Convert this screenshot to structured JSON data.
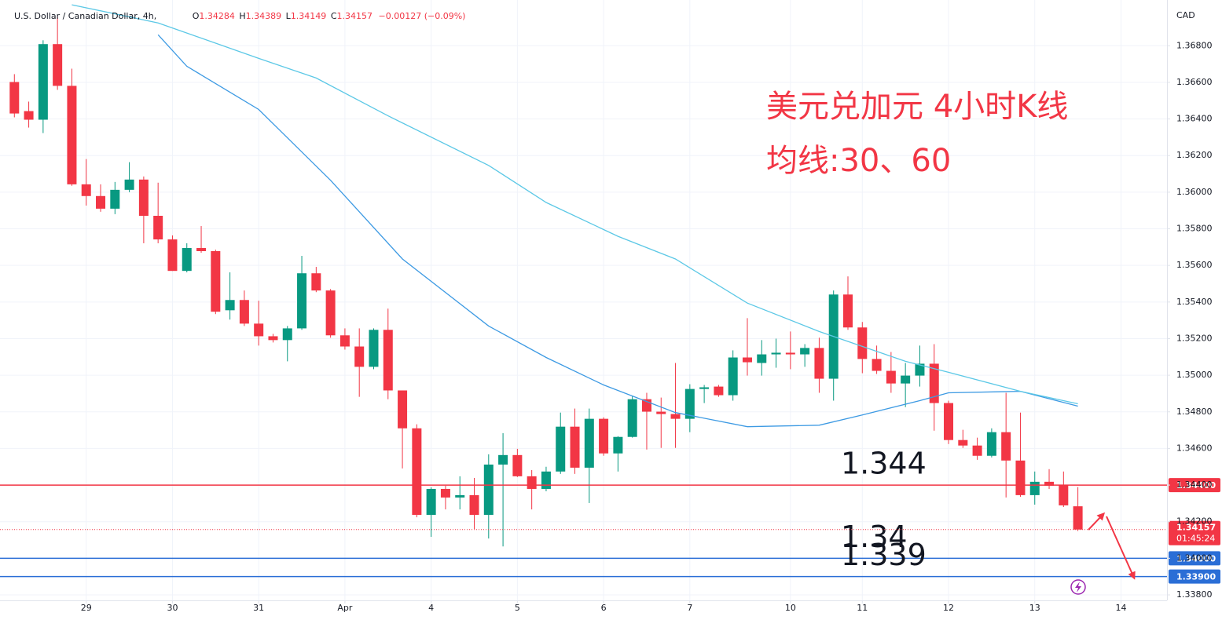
{
  "chart_data": {
    "type": "candlestick",
    "header": {
      "symbol": "U.S. Dollar / Canadian Dollar, 4h,",
      "ohlc": [
        {
          "label": "O",
          "value": "1.34284"
        },
        {
          "label": "H",
          "value": "1.34389"
        },
        {
          "label": "L",
          "value": "1.34149"
        },
        {
          "label": "C",
          "value": "1.34157"
        }
      ],
      "change": "−0.00127 (−0.09%)"
    },
    "currency": "CAD",
    "annotations": [
      "美元兑加元 4小时K线",
      "均线:30、60"
    ],
    "up_color": "#089981",
    "down_color": "#f23645",
    "x": [
      0,
      1,
      2,
      3,
      4,
      5,
      6,
      7,
      8,
      9,
      10,
      11,
      12,
      13,
      14,
      15,
      16,
      17,
      18,
      19,
      20,
      21,
      22,
      23,
      24,
      25,
      26,
      27,
      28,
      29,
      30,
      31,
      32,
      33,
      34,
      35,
      36,
      37,
      38,
      39,
      40,
      41,
      42,
      43,
      44,
      45,
      46,
      47,
      48,
      49,
      50,
      51,
      52,
      53,
      54,
      55,
      56,
      57,
      58,
      59,
      60,
      61,
      62,
      63,
      64,
      65,
      66,
      67,
      68,
      69,
      70,
      71,
      72,
      73,
      74
    ],
    "open": [
      1.36602,
      1.36443,
      1.36396,
      1.36809,
      1.36581,
      1.36043,
      1.35979,
      1.3591,
      1.36013,
      1.36069,
      1.35871,
      1.35742,
      1.3557,
      1.35695,
      1.35678,
      1.35355,
      1.35411,
      1.35282,
      1.35213,
      1.35192,
      1.35256,
      1.35557,
      1.35463,
      1.35218,
      1.35157,
      1.35046,
      1.35248,
      1.34917,
      1.3471,
      1.34237,
      1.34379,
      1.34332,
      1.34345,
      1.34237,
      1.34512,
      1.34564,
      1.34448,
      1.34379,
      1.34474,
      1.34719,
      1.34495,
      1.34762,
      1.34573,
      1.34663,
      1.34869,
      1.34801,
      1.34788,
      1.34762,
      1.34925,
      1.34938,
      1.34891,
      1.35097,
      1.35067,
      1.35114,
      1.35123,
      1.35114,
      1.35149,
      1.34981,
      1.35441,
      1.35261,
      1.35089,
      1.35024,
      1.34955,
      1.34998,
      1.35063,
      1.34848,
      1.34646,
      1.34616,
      1.3456,
      1.34689,
      1.34534,
      1.34345,
      1.34418,
      1.34401,
      1.34284
    ],
    "high": [
      1.36645,
      1.36495,
      1.3683,
      1.36959,
      1.36675,
      1.36181,
      1.36043,
      1.36056,
      1.36164,
      1.36086,
      1.36052,
      1.35764,
      1.35721,
      1.35815,
      1.35686,
      1.35562,
      1.35463,
      1.35407,
      1.35226,
      1.35269,
      1.35652,
      1.35592,
      1.35471,
      1.35256,
      1.35256,
      1.35256,
      1.35364,
      1.34917,
      1.34732,
      1.34388,
      1.34396,
      1.34448,
      1.34439,
      1.34568,
      1.34684,
      1.34598,
      1.34482,
      1.345,
      1.34796,
      1.34818,
      1.34818,
      1.3477,
      1.34667,
      1.34887,
      1.34904,
      1.34878,
      1.35067,
      1.34951,
      1.34947,
      1.34947,
      1.35136,
      1.35312,
      1.35192,
      1.352,
      1.35239,
      1.3517,
      1.35205,
      1.35463,
      1.3554,
      1.35291,
      1.35162,
      1.35127,
      1.35067,
      1.35162,
      1.3517,
      1.34861,
      1.34702,
      1.34659,
      1.3471,
      1.34904,
      1.34796,
      1.34474,
      1.34487,
      1.34474,
      1.34389
    ],
    "low": [
      1.36409,
      1.36353,
      1.36323,
      1.36559,
      1.36035,
      1.35927,
      1.35893,
      1.3588,
      1.36,
      1.35721,
      1.35721,
      1.3557,
      1.35562,
      1.35669,
      1.35334,
      1.35304,
      1.35269,
      1.35162,
      1.35179,
      1.35076,
      1.35248,
      1.35454,
      1.35205,
      1.3514,
      1.34882,
      1.35033,
      1.34869,
      1.34491,
      1.34224,
      1.34117,
      1.34267,
      1.34267,
      1.3416,
      1.34108,
      1.34065,
      1.34444,
      1.34267,
      1.34366,
      1.34461,
      1.34461,
      1.34302,
      1.3456,
      1.34474,
      1.34659,
      1.34594,
      1.34603,
      1.34603,
      1.34689,
      1.34848,
      1.34882,
      1.34861,
      1.34998,
      1.34998,
      1.35041,
      1.35033,
      1.35046,
      1.34904,
      1.34861,
      1.35248,
      1.35011,
      1.35007,
      1.34904,
      1.34826,
      1.34938,
      1.34697,
      1.34624,
      1.34603,
      1.34538,
      1.34551,
      1.34332,
      1.34336,
      1.34293,
      1.34379,
      1.3428,
      1.34149
    ],
    "close": [
      1.3643,
      1.36396,
      1.36809,
      1.36581,
      1.36043,
      1.35979,
      1.3591,
      1.36013,
      1.36069,
      1.35871,
      1.35742,
      1.3557,
      1.35695,
      1.35678,
      1.35347,
      1.35411,
      1.35282,
      1.35213,
      1.35192,
      1.35256,
      1.35557,
      1.35463,
      1.35218,
      1.35157,
      1.35046,
      1.35248,
      1.34917,
      1.3471,
      1.34237,
      1.34379,
      1.34332,
      1.34345,
      1.34237,
      1.34512,
      1.34564,
      1.34448,
      1.34379,
      1.34474,
      1.34719,
      1.34495,
      1.34762,
      1.34573,
      1.34663,
      1.34869,
      1.34801,
      1.34788,
      1.34762,
      1.34925,
      1.34934,
      1.34891,
      1.35097,
      1.35071,
      1.35114,
      1.35123,
      1.35114,
      1.35149,
      1.34981,
      1.35441,
      1.35261,
      1.35089,
      1.35024,
      1.34955,
      1.34998,
      1.35063,
      1.34848,
      1.34646,
      1.34616,
      1.3456,
      1.34689,
      1.34534,
      1.34345,
      1.34418,
      1.34396,
      1.34289,
      1.34157
    ],
    "lines": [
      {
        "color": "#3d9ae3",
        "x": [
          10,
          12,
          17,
          22,
          27,
          33,
          37,
          41,
          46,
          51,
          56,
          59,
          63,
          65,
          70,
          74
        ],
        "values": [
          1.3686,
          1.36688,
          1.36452,
          1.36065,
          1.35635,
          1.35269,
          1.35097,
          1.34947,
          1.34796,
          1.34719,
          1.34727,
          1.34783,
          1.34861,
          1.34904,
          1.34912,
          1.34831
        ]
      },
      {
        "color": "#5cc8e6",
        "x": [
          4,
          10,
          17,
          21,
          26,
          33,
          37,
          42,
          46,
          51,
          56,
          62,
          65,
          70,
          74
        ],
        "values": [
          1.37024,
          1.36925,
          1.36731,
          1.36624,
          1.36417,
          1.36146,
          1.35944,
          1.35759,
          1.35635,
          1.35394,
          1.35239,
          1.35076,
          1.35016,
          1.34912,
          1.34844
        ]
      }
    ],
    "hlines": [
      {
        "value": 1.344,
        "color": "#f23645",
        "label": "1.34400",
        "note": "1.344",
        "note_color": "#f23645"
      },
      {
        "value": 1.34,
        "color": "#2a6ed6",
        "label": "1.34000",
        "note": "1.34",
        "note_color": "#e8405e"
      },
      {
        "value": 1.339,
        "color": "#2a6ed6",
        "label": "1.33900",
        "note": "1.339",
        "note_color": "#e8405e"
      }
    ],
    "last_price": {
      "value": 1.34157,
      "label": "1.34157",
      "countdown": "01:45:24",
      "color": "#f23645"
    },
    "xlim": [
      -1,
      80.2
    ],
    "xticks": [
      {
        "value": 5,
        "label": "29"
      },
      {
        "value": 11,
        "label": "30"
      },
      {
        "value": 17,
        "label": "31"
      },
      {
        "value": 23,
        "label": "Apr"
      },
      {
        "value": 29,
        "label": "4"
      },
      {
        "value": 35,
        "label": "5"
      },
      {
        "value": 41,
        "label": "6"
      },
      {
        "value": 47,
        "label": "7"
      },
      {
        "value": 54,
        "label": "10"
      },
      {
        "value": 59,
        "label": "11"
      },
      {
        "value": 65,
        "label": "12"
      },
      {
        "value": 71,
        "label": "13"
      },
      {
        "value": 77,
        "label": "14"
      }
    ],
    "ylim": [
      1.3377,
      1.3705
    ],
    "yticks": [
      {
        "value": 1.368,
        "label": "1.36800"
      },
      {
        "value": 1.366,
        "label": "1.36600"
      },
      {
        "value": 1.364,
        "label": "1.36400"
      },
      {
        "value": 1.362,
        "label": "1.36200"
      },
      {
        "value": 1.36,
        "label": "1.36000"
      },
      {
        "value": 1.358,
        "label": "1.35800"
      },
      {
        "value": 1.356,
        "label": "1.35600"
      },
      {
        "value": 1.354,
        "label": "1.35400"
      },
      {
        "value": 1.352,
        "label": "1.35200"
      },
      {
        "value": 1.35,
        "label": "1.35000"
      },
      {
        "value": 1.348,
        "label": "1.34800"
      },
      {
        "value": 1.346,
        "label": "1.34600"
      },
      {
        "value": 1.344,
        "label": "1.34400"
      },
      {
        "value": 1.342,
        "label": "1.34200"
      },
      {
        "value": 1.34,
        "label": "1.34000"
      },
      {
        "value": 1.338,
        "label": "1.33800"
      }
    ],
    "grid": true
  }
}
